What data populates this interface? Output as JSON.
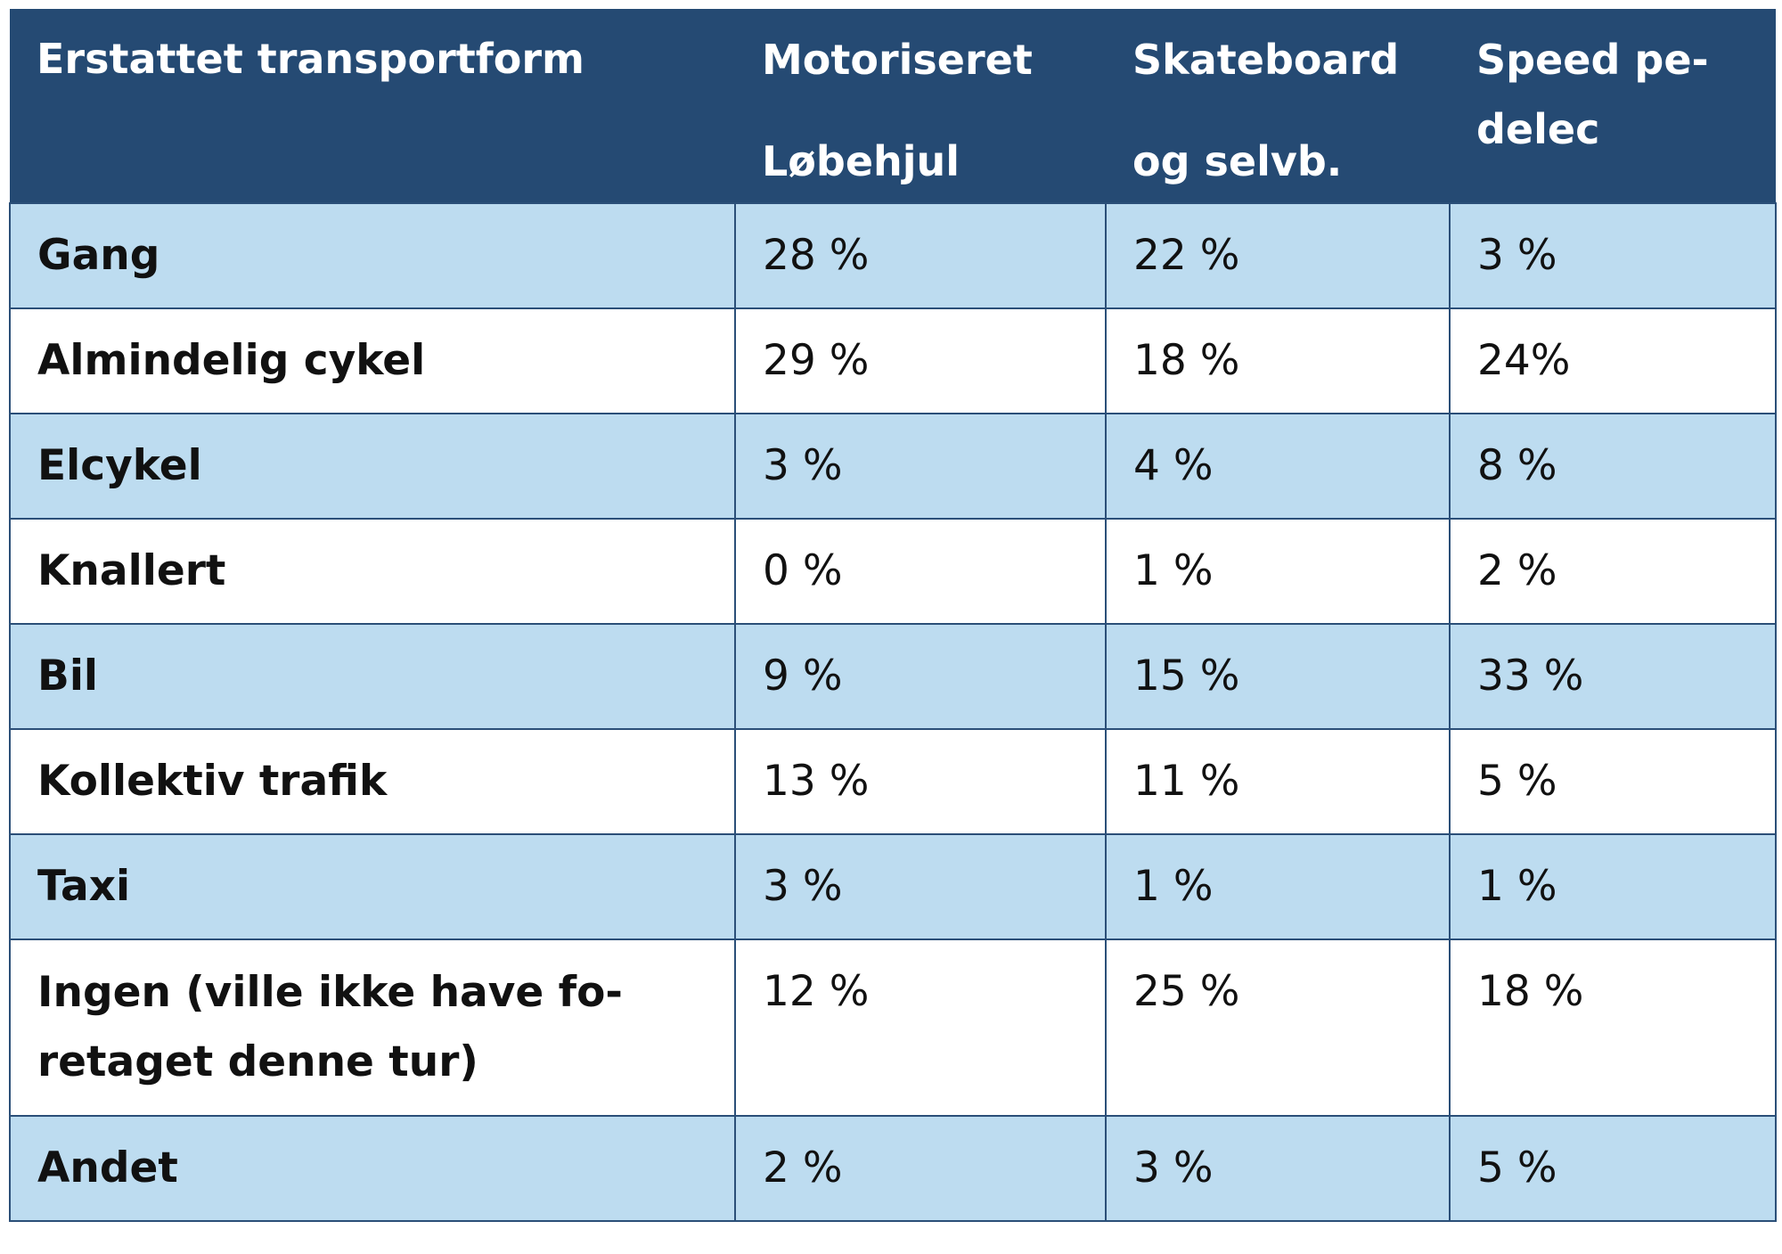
{
  "table": {
    "headers": [
      {
        "line1": "Erstattet transportform",
        "line2": ""
      },
      {
        "line1": "Motoriseret",
        "line2": "Løbehjul"
      },
      {
        "line1": "Skateboard",
        "line2": "og selvb."
      },
      {
        "line1": "Speed pe-",
        "line2": "delec"
      }
    ],
    "rows": [
      {
        "label": "Gang",
        "values": [
          "28 %",
          "22 %",
          "3 %"
        ]
      },
      {
        "label": "Almindelig cykel",
        "values": [
          "29 %",
          "18 %",
          "24%"
        ]
      },
      {
        "label": "Elcykel",
        "values": [
          "3 %",
          "4 %",
          "8 %"
        ]
      },
      {
        "label": "Knallert",
        "values": [
          "0 %",
          "1 %",
          "2 %"
        ]
      },
      {
        "label": "Bil",
        "values": [
          "9 %",
          "15 %",
          "33 %"
        ]
      },
      {
        "label": "Kollektiv trafik",
        "values": [
          "13 %",
          "11 %",
          "5 %"
        ]
      },
      {
        "label": "Taxi",
        "values": [
          "3 %",
          "1 %",
          "1 %"
        ]
      },
      {
        "label": "Ingen (ville ikke have fo-",
        "label_line2": "retaget denne tur)",
        "values": [
          "12 %",
          "25 %",
          "18 %"
        ]
      },
      {
        "label": "Andet",
        "values": [
          "2 %",
          "3 %",
          "5 %"
        ]
      }
    ]
  },
  "colors": {
    "header_bg": "#254a73",
    "header_text": "#ffffff",
    "row_shaded": "#bddcf0",
    "row_plain": "#ffffff",
    "border": "#2b4f78"
  }
}
